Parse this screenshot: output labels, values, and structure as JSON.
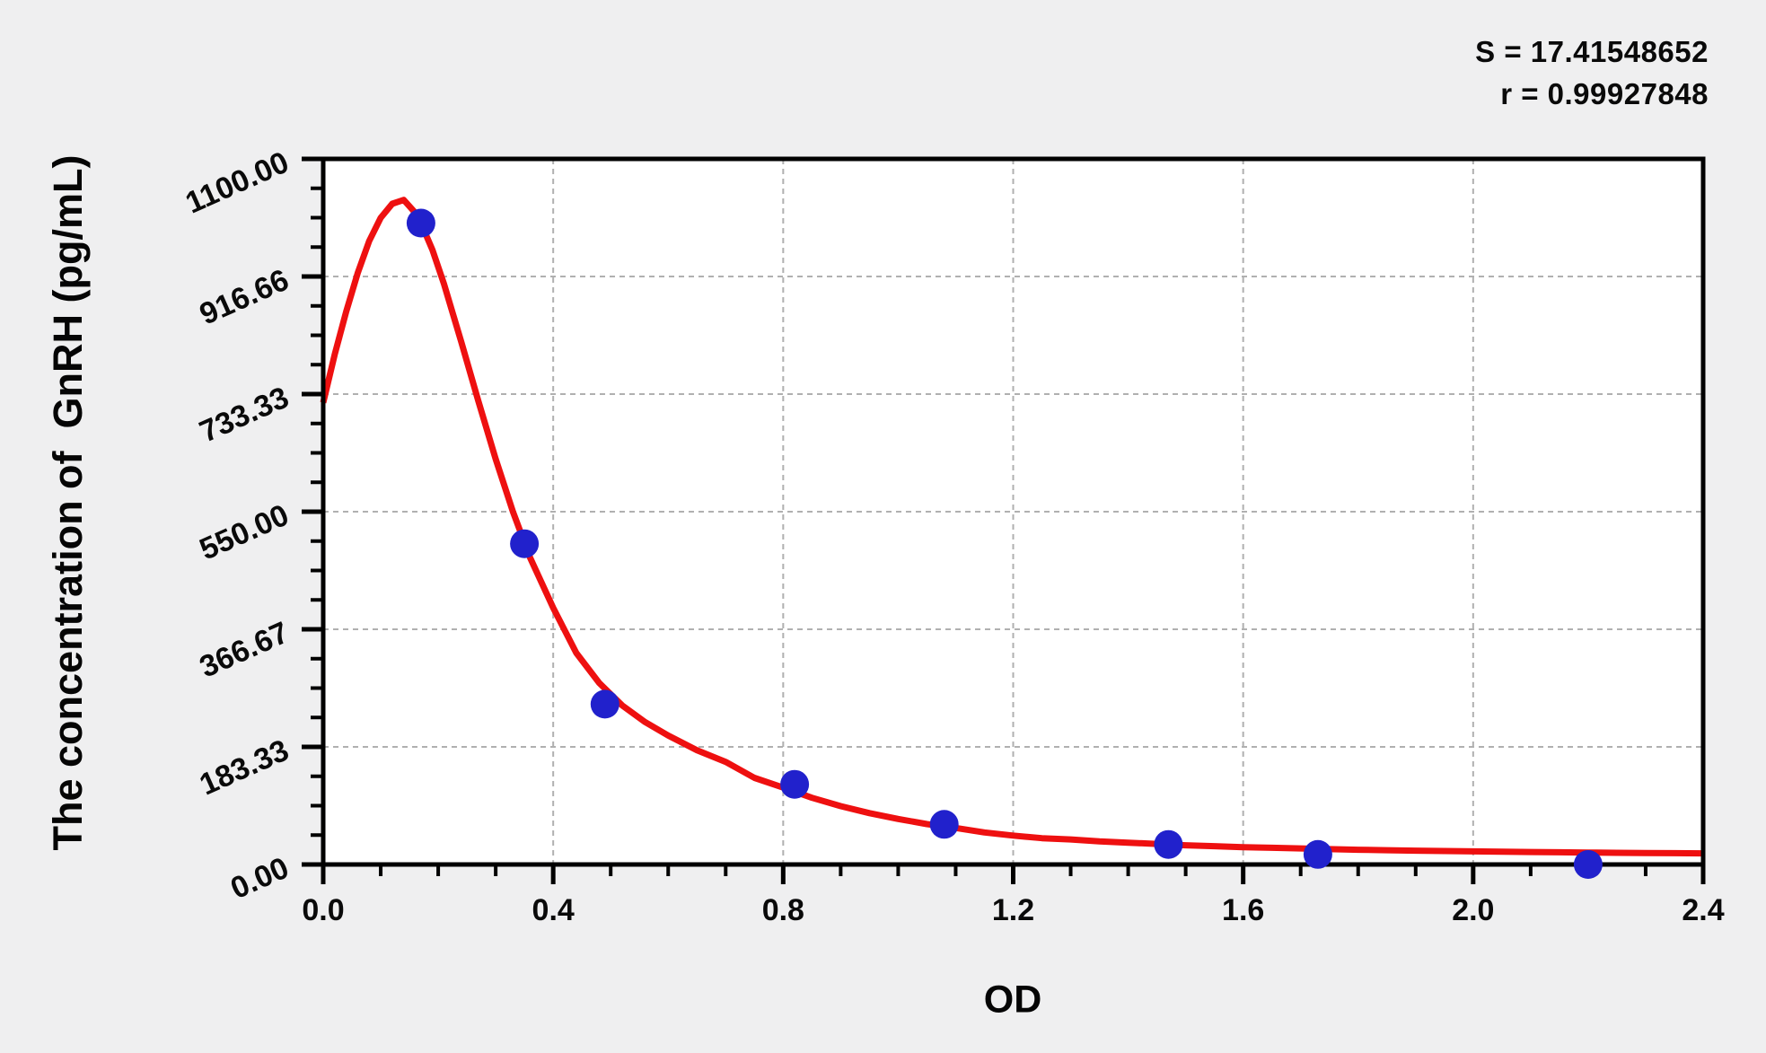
{
  "stats": {
    "s_label": "S = 17.41548652",
    "r_label": "r = 0.99927848"
  },
  "chart_data": {
    "type": "scatter",
    "title": "",
    "xlabel": "OD",
    "ylabel": "The concentration of  GnRH (pg/mL)",
    "x_axis": {
      "range": [
        0,
        2.4
      ],
      "tick_values": [
        0,
        0.4,
        0.8,
        1.2,
        1.6,
        2.0,
        2.4
      ],
      "tick_labels": [
        "0.0",
        "0.4",
        "0.8",
        "1.2",
        "1.6",
        "2.0",
        "2.4"
      ],
      "minor_ticks_per_major": 4
    },
    "y_axis": {
      "range": [
        0,
        1100
      ],
      "tick_values": [
        0,
        183.33,
        366.67,
        550.0,
        733.33,
        916.66,
        1100.0
      ],
      "tick_labels": [
        "0.00",
        "183.33",
        "366.67",
        "550.00",
        "733.33",
        "916.66",
        "1100.00"
      ],
      "minor_ticks_per_major": 4
    },
    "grid": true,
    "legend": "none",
    "fit_stats": {
      "S": 17.41548652,
      "r": 0.99927848
    },
    "series": [
      {
        "name": "standard-points",
        "type": "scatter",
        "color": "#2121cc",
        "marker_radius": 16,
        "points": [
          [
            0.17,
            1000
          ],
          [
            0.35,
            500
          ],
          [
            0.49,
            250
          ],
          [
            0.82,
            125
          ],
          [
            1.08,
            62.5
          ],
          [
            1.47,
            31.25
          ],
          [
            1.73,
            15.625
          ],
          [
            2.2,
            0
          ]
        ]
      },
      {
        "name": "fitted-curve",
        "type": "line",
        "color": "#ee1010",
        "stroke_width": 7,
        "points": [
          [
            0.0,
            720
          ],
          [
            0.02,
            795
          ],
          [
            0.04,
            862
          ],
          [
            0.06,
            922
          ],
          [
            0.08,
            972
          ],
          [
            0.1,
            1008
          ],
          [
            0.12,
            1030
          ],
          [
            0.14,
            1036
          ],
          [
            0.16,
            1016
          ],
          [
            0.17,
            1000
          ],
          [
            0.19,
            958
          ],
          [
            0.21,
            905
          ],
          [
            0.24,
            815
          ],
          [
            0.27,
            722
          ],
          [
            0.3,
            632
          ],
          [
            0.33,
            550
          ],
          [
            0.36,
            478
          ],
          [
            0.4,
            400
          ],
          [
            0.44,
            330
          ],
          [
            0.48,
            283
          ],
          [
            0.52,
            248
          ],
          [
            0.56,
            222
          ],
          [
            0.6,
            201
          ],
          [
            0.65,
            178
          ],
          [
            0.7,
            160
          ],
          [
            0.75,
            135
          ],
          [
            0.8,
            120
          ],
          [
            0.85,
            104
          ],
          [
            0.9,
            91
          ],
          [
            0.95,
            80
          ],
          [
            1.0,
            71
          ],
          [
            1.05,
            63
          ],
          [
            1.1,
            57
          ],
          [
            1.15,
            50
          ],
          [
            1.2,
            45
          ],
          [
            1.25,
            41
          ],
          [
            1.3,
            39
          ],
          [
            1.35,
            36
          ],
          [
            1.4,
            34
          ],
          [
            1.45,
            32
          ],
          [
            1.5,
            30
          ],
          [
            1.55,
            28.5
          ],
          [
            1.6,
            27
          ],
          [
            1.65,
            26
          ],
          [
            1.7,
            25
          ],
          [
            1.75,
            24
          ],
          [
            1.8,
            23
          ],
          [
            1.85,
            22.3
          ],
          [
            1.9,
            21.6
          ],
          [
            1.95,
            21
          ],
          [
            2.0,
            20.4
          ],
          [
            2.05,
            19.9
          ],
          [
            2.1,
            19.4
          ],
          [
            2.15,
            19
          ],
          [
            2.2,
            18.6
          ],
          [
            2.25,
            18.2
          ],
          [
            2.3,
            17.9
          ],
          [
            2.35,
            17.6
          ],
          [
            2.4,
            17.4
          ]
        ]
      }
    ],
    "colors": {
      "page_bg": "#efeff0",
      "plot_bg": "#ffffff",
      "axis": "#000000",
      "grid": "#b0b0b0",
      "text": "#0a0a0a"
    }
  }
}
